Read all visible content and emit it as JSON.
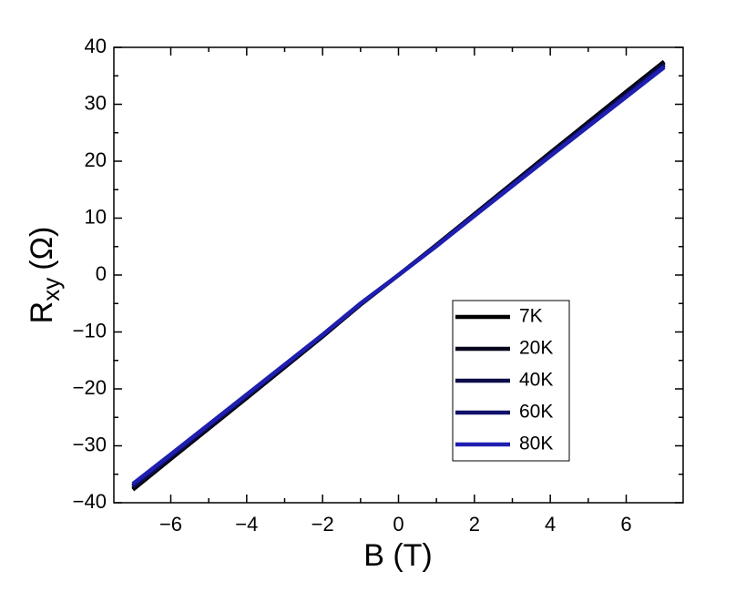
{
  "chart_data": {
    "type": "line",
    "xlabel": "B (T)",
    "ylabel": [
      "R",
      "xy",
      "(Ω)"
    ],
    "x": [
      -7,
      -6,
      -4,
      -2,
      -1,
      0,
      1,
      2,
      4,
      6,
      7
    ],
    "series": [
      {
        "name": "7K",
        "color": "#000000",
        "values": [
          -37.7,
          -32.3,
          -21.6,
          -10.8,
          -5.2,
          0,
          5.3,
          10.7,
          21.5,
          32.2,
          37.5
        ]
      },
      {
        "name": "20K",
        "color": "#06061c",
        "values": [
          -37.5,
          -32.1,
          -21.5,
          -10.7,
          -5.1,
          0,
          5.2,
          10.6,
          21.4,
          32.0,
          37.3
        ]
      },
      {
        "name": "40K",
        "color": "#0c0c48",
        "values": [
          -37.2,
          -31.9,
          -21.3,
          -10.6,
          -5.1,
          0,
          5.2,
          10.5,
          21.2,
          31.7,
          37.0
        ]
      },
      {
        "name": "60K",
        "color": "#10106a",
        "values": [
          -37.0,
          -31.7,
          -21.1,
          -10.5,
          -5.0,
          0,
          5.1,
          10.5,
          21.0,
          31.5,
          36.8
        ]
      },
      {
        "name": "80K",
        "color": "#1e1eb0",
        "values": [
          -36.7,
          -31.5,
          -21.0,
          -10.5,
          -5.0,
          0,
          5.1,
          10.4,
          20.9,
          31.3,
          36.5
        ]
      }
    ],
    "xlim": [
      -7.5,
      7.5
    ],
    "ylim": [
      -40,
      40
    ],
    "xticks": [
      {
        "value": -6,
        "label": "−6"
      },
      {
        "value": -4,
        "label": "−4"
      },
      {
        "value": -2,
        "label": "−2"
      },
      0,
      2,
      4,
      6
    ],
    "yticks": [
      {
        "value": -40,
        "label": "−40"
      },
      {
        "value": -30,
        "label": "−30"
      },
      {
        "value": -20,
        "label": "−20"
      },
      {
        "value": -10,
        "label": "−10"
      },
      0,
      10,
      20,
      30,
      40
    ]
  }
}
